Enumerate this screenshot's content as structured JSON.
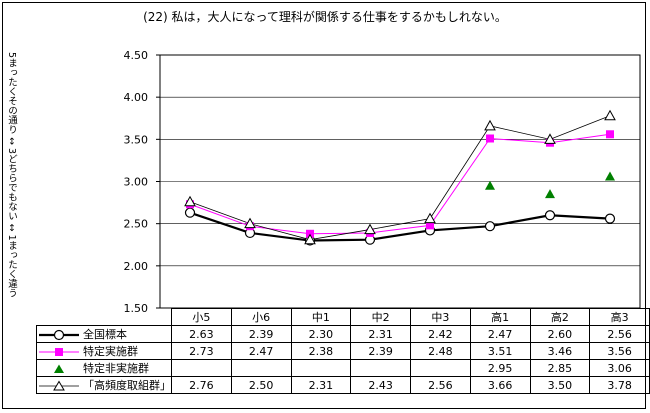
{
  "chart_data": {
    "type": "line",
    "title": "(22) 私は，大人になって理科が関係する仕事をするかもしれない。",
    "ylabel": "5まったくその通り ↔ 3どちらでもない ↔ 1まったく違う",
    "ylim": [
      1.5,
      4.5
    ],
    "yticks": [
      "1.50",
      "2.00",
      "2.50",
      "3.00",
      "3.50",
      "4.00",
      "4.50"
    ],
    "grid": true,
    "categories": [
      "小5",
      "小6",
      "中1",
      "中2",
      "中3",
      "高1",
      "高2",
      "高3"
    ],
    "series": [
      {
        "name": "全国標本",
        "color": "#000000",
        "marker": "circle",
        "values": [
          2.63,
          2.39,
          2.3,
          2.31,
          2.42,
          2.47,
          2.6,
          2.56
        ],
        "labels": [
          "2.63",
          "2.39",
          "2.30",
          "2.31",
          "2.42",
          "2.47",
          "2.60",
          "2.56"
        ]
      },
      {
        "name": "特定実施群",
        "color": "#ff00ff",
        "marker": "square",
        "values": [
          2.73,
          2.47,
          2.38,
          2.39,
          2.48,
          3.51,
          3.46,
          3.56
        ],
        "labels": [
          "2.73",
          "2.47",
          "2.38",
          "2.39",
          "2.48",
          "3.51",
          "3.46",
          "3.56"
        ]
      },
      {
        "name": "特定非実施群",
        "color": "#008000",
        "marker": "triangle",
        "values": [
          null,
          null,
          null,
          null,
          null,
          2.95,
          2.85,
          3.06
        ],
        "labels": [
          "",
          "",
          "",
          "",
          "",
          "2.95",
          "2.85",
          "3.06"
        ]
      },
      {
        "name": "「高頻度取組群」",
        "color": "#000000",
        "marker": "triangle-open",
        "values": [
          2.76,
          2.5,
          2.31,
          2.43,
          2.56,
          3.66,
          3.5,
          3.78
        ],
        "labels": [
          "2.76",
          "2.50",
          "2.31",
          "2.43",
          "2.56",
          "3.66",
          "3.50",
          "3.78"
        ]
      }
    ]
  }
}
